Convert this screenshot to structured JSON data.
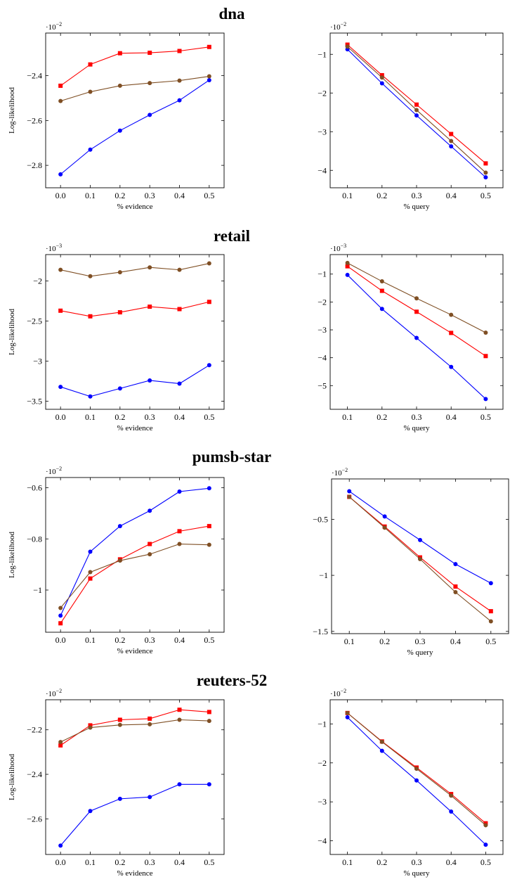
{
  "series_styles": [
    {
      "color": "#0000ff",
      "marker": "circle"
    },
    {
      "color": "#ff0000",
      "marker": "square"
    },
    {
      "color": "#7f4f24",
      "marker": "circle"
    }
  ],
  "rows": [
    {
      "title": "dna"
    },
    {
      "title": "retail"
    },
    {
      "title": "pumsb-star"
    },
    {
      "title": "reuters-52"
    }
  ],
  "chart_data": [
    {
      "type": "line",
      "row": 0,
      "panel": "evidence",
      "scale_label": "·10",
      "scale_exponent": "−2",
      "xlabel": "% evidence",
      "ylabel": "Log-likelihood",
      "x": [
        0.0,
        0.1,
        0.2,
        0.3,
        0.4,
        0.5
      ],
      "xticks": [
        "0.0",
        "0.1",
        "0.2",
        "0.3",
        "0.4",
        "0.5"
      ],
      "xlim": [
        -0.05,
        0.55
      ],
      "yticks": [
        -2.4,
        -2.6,
        -2.8
      ],
      "ytick_labels": [
        "−2.4",
        "−2.6",
        "−2.8"
      ],
      "ylim": [
        -2.9,
        -2.21
      ],
      "series": [
        {
          "values": [
            -2.84,
            -2.73,
            -2.645,
            -2.575,
            -2.51,
            -2.42
          ]
        },
        {
          "values": [
            -2.445,
            -2.35,
            -2.3,
            -2.298,
            -2.29,
            -2.272
          ]
        },
        {
          "values": [
            -2.513,
            -2.472,
            -2.445,
            -2.433,
            -2.422,
            -2.403
          ]
        }
      ]
    },
    {
      "type": "line",
      "row": 0,
      "panel": "query",
      "scale_label": "·10",
      "scale_exponent": "−2",
      "xlabel": "% query",
      "ylabel": "",
      "x": [
        0.1,
        0.2,
        0.3,
        0.4,
        0.5
      ],
      "xticks": [
        "0.1",
        "0.2",
        "0.3",
        "0.4",
        "0.5"
      ],
      "xlim": [
        0.05,
        0.55
      ],
      "yticks": [
        -1,
        -2,
        -3,
        -4
      ],
      "ytick_labels": [
        "−1",
        "−2",
        "−3",
        "−4"
      ],
      "ylim": [
        -4.45,
        -0.45
      ],
      "series": [
        {
          "values": [
            -0.87,
            -1.75,
            -2.58,
            -3.38,
            -4.18
          ]
        },
        {
          "values": [
            -0.75,
            -1.54,
            -2.3,
            -3.06,
            -3.82
          ]
        },
        {
          "values": [
            -0.8,
            -1.6,
            -2.44,
            -3.24,
            -4.06
          ]
        }
      ]
    },
    {
      "type": "line",
      "row": 1,
      "panel": "evidence",
      "scale_label": "·10",
      "scale_exponent": "−3",
      "xlabel": "% evidence",
      "ylabel": "Log-likelihood",
      "x": [
        0.0,
        0.1,
        0.2,
        0.3,
        0.4,
        0.5
      ],
      "xticks": [
        "0.0",
        "0.1",
        "0.2",
        "0.3",
        "0.4",
        "0.5"
      ],
      "xlim": [
        -0.05,
        0.55
      ],
      "yticks": [
        -2,
        -2.5,
        -3,
        -3.5
      ],
      "ytick_labels": [
        "−2",
        "−2.5",
        "−3",
        "−3.5"
      ],
      "ylim": [
        -3.6,
        -1.67
      ],
      "series": [
        {
          "values": [
            -3.32,
            -3.44,
            -3.34,
            -3.24,
            -3.28,
            -3.05
          ]
        },
        {
          "values": [
            -2.37,
            -2.44,
            -2.39,
            -2.32,
            -2.35,
            -2.26
          ]
        },
        {
          "values": [
            -1.86,
            -1.94,
            -1.89,
            -1.83,
            -1.86,
            -1.78
          ]
        }
      ]
    },
    {
      "type": "line",
      "row": 1,
      "panel": "query",
      "scale_label": "·10",
      "scale_exponent": "−3",
      "xlabel": "% query",
      "ylabel": "",
      "x": [
        0.1,
        0.2,
        0.3,
        0.4,
        0.5
      ],
      "xticks": [
        "0.1",
        "0.2",
        "0.3",
        "0.4",
        "0.5"
      ],
      "xlim": [
        0.05,
        0.55
      ],
      "yticks": [
        -1,
        -2,
        -3,
        -4,
        -5
      ],
      "ytick_labels": [
        "−1",
        "−2",
        "−3",
        "−4",
        "−5"
      ],
      "ylim": [
        -5.85,
        -0.3
      ],
      "series": [
        {
          "values": [
            -1.03,
            -2.25,
            -3.29,
            -4.33,
            -5.48
          ]
        },
        {
          "values": [
            -0.72,
            -1.6,
            -2.35,
            -3.11,
            -3.94
          ]
        },
        {
          "values": [
            -0.6,
            -1.26,
            -1.87,
            -2.46,
            -3.1
          ]
        }
      ]
    },
    {
      "type": "line",
      "row": 2,
      "panel": "evidence",
      "scale_label": "·10",
      "scale_exponent": "−2",
      "xlabel": "% evidence",
      "ylabel": "Log-likelihood",
      "x": [
        0.0,
        0.1,
        0.2,
        0.3,
        0.4,
        0.5
      ],
      "xticks": [
        "0.0",
        "0.1",
        "0.2",
        "0.3",
        "0.4",
        "0.5"
      ],
      "xlim": [
        -0.05,
        0.55
      ],
      "yticks": [
        -0.6,
        -0.8,
        -1
      ],
      "ytick_labels": [
        "−0.6",
        "−0.8",
        "−1"
      ],
      "ylim": [
        -1.165,
        -0.56
      ],
      "series": [
        {
          "values": [
            -1.1,
            -0.85,
            -0.75,
            -0.69,
            -0.615,
            -0.602
          ]
        },
        {
          "values": [
            -1.13,
            -0.955,
            -0.88,
            -0.82,
            -0.77,
            -0.75
          ]
        },
        {
          "values": [
            -1.07,
            -0.93,
            -0.885,
            -0.86,
            -0.82,
            -0.823
          ]
        }
      ]
    },
    {
      "type": "line",
      "row": 2,
      "panel": "query",
      "scale_label": "·10",
      "scale_exponent": "−2",
      "xlabel": "% query",
      "ylabel": "",
      "x": [
        0.1,
        0.2,
        0.3,
        0.4,
        0.5
      ],
      "xticks": [
        "0.1",
        "0.2",
        "0.3",
        "0.4",
        "0.5"
      ],
      "xlim": [
        0.05,
        0.55
      ],
      "yticks": [
        -0.5,
        -1,
        -1.5
      ],
      "ytick_labels": [
        "−0.5",
        "−1",
        "−1.5"
      ],
      "ylim": [
        -1.52,
        -0.14
      ],
      "series": [
        {
          "values": [
            -0.25,
            -0.475,
            -0.685,
            -0.9,
            -1.07
          ]
        },
        {
          "values": [
            -0.3,
            -0.565,
            -0.84,
            -1.1,
            -1.32
          ]
        },
        {
          "values": [
            -0.3,
            -0.575,
            -0.855,
            -1.15,
            -1.41
          ]
        }
      ]
    },
    {
      "type": "line",
      "row": 3,
      "panel": "evidence",
      "scale_label": "·10",
      "scale_exponent": "−2",
      "xlabel": "% evidence",
      "ylabel": "Log-likelihood",
      "x": [
        0.0,
        0.1,
        0.2,
        0.3,
        0.4,
        0.5
      ],
      "xticks": [
        "0.0",
        "0.1",
        "0.2",
        "0.3",
        "0.4",
        "0.5"
      ],
      "xlim": [
        -0.05,
        0.55
      ],
      "yticks": [
        -2.2,
        -2.4,
        -2.6
      ],
      "ytick_labels": [
        "−2.2",
        "−2.4",
        "−2.6"
      ],
      "ylim": [
        -2.76,
        -2.065
      ],
      "series": [
        {
          "values": [
            -2.72,
            -2.565,
            -2.51,
            -2.502,
            -2.445,
            -2.445
          ]
        },
        {
          "values": [
            -2.27,
            -2.18,
            -2.155,
            -2.15,
            -2.11,
            -2.12
          ]
        },
        {
          "values": [
            -2.255,
            -2.19,
            -2.178,
            -2.175,
            -2.155,
            -2.16
          ]
        }
      ]
    },
    {
      "type": "line",
      "row": 3,
      "panel": "query",
      "scale_label": "·10",
      "scale_exponent": "−2",
      "xlabel": "% query",
      "ylabel": "",
      "x": [
        0.1,
        0.2,
        0.3,
        0.4,
        0.5
      ],
      "xticks": [
        "0.1",
        "0.2",
        "0.3",
        "0.4",
        "0.5"
      ],
      "xlim": [
        0.05,
        0.55
      ],
      "yticks": [
        -1,
        -2,
        -3,
        -4
      ],
      "ytick_labels": [
        "−1",
        "−2",
        "−3",
        "−4"
      ],
      "ylim": [
        -4.35,
        -0.38
      ],
      "series": [
        {
          "values": [
            -0.83,
            -1.69,
            -2.45,
            -3.25,
            -4.1
          ]
        },
        {
          "values": [
            -0.72,
            -1.45,
            -2.12,
            -2.8,
            -3.55
          ]
        },
        {
          "values": [
            -0.72,
            -1.46,
            -2.15,
            -2.84,
            -3.6
          ]
        }
      ]
    }
  ]
}
